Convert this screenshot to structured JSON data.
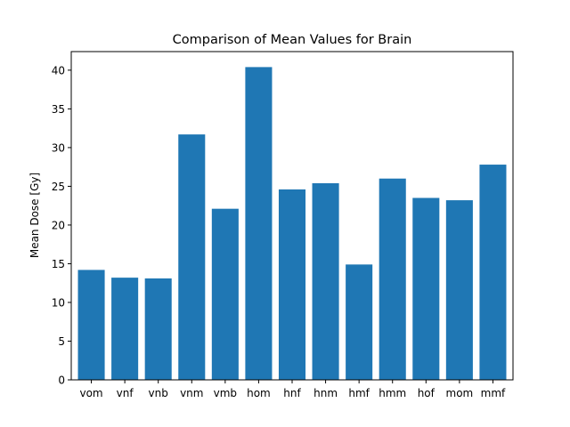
{
  "chart_data": {
    "type": "bar",
    "title": "Comparison of Mean Values for Brain",
    "xlabel": "",
    "ylabel": "Mean Dose [Gy]",
    "categories": [
      "vom",
      "vnf",
      "vnb",
      "vnm",
      "vmb",
      "hom",
      "hnf",
      "hnm",
      "hmf",
      "hmm",
      "hof",
      "mom",
      "mmf"
    ],
    "values": [
      14.2,
      13.2,
      13.1,
      31.7,
      22.1,
      40.4,
      24.6,
      25.4,
      14.9,
      26.0,
      23.5,
      23.2,
      27.8
    ],
    "ylim": [
      0,
      42.4
    ],
    "yticks": [
      0,
      5,
      10,
      15,
      20,
      25,
      30,
      35,
      40
    ],
    "grid": false,
    "bar_color": "#1f77b4"
  }
}
